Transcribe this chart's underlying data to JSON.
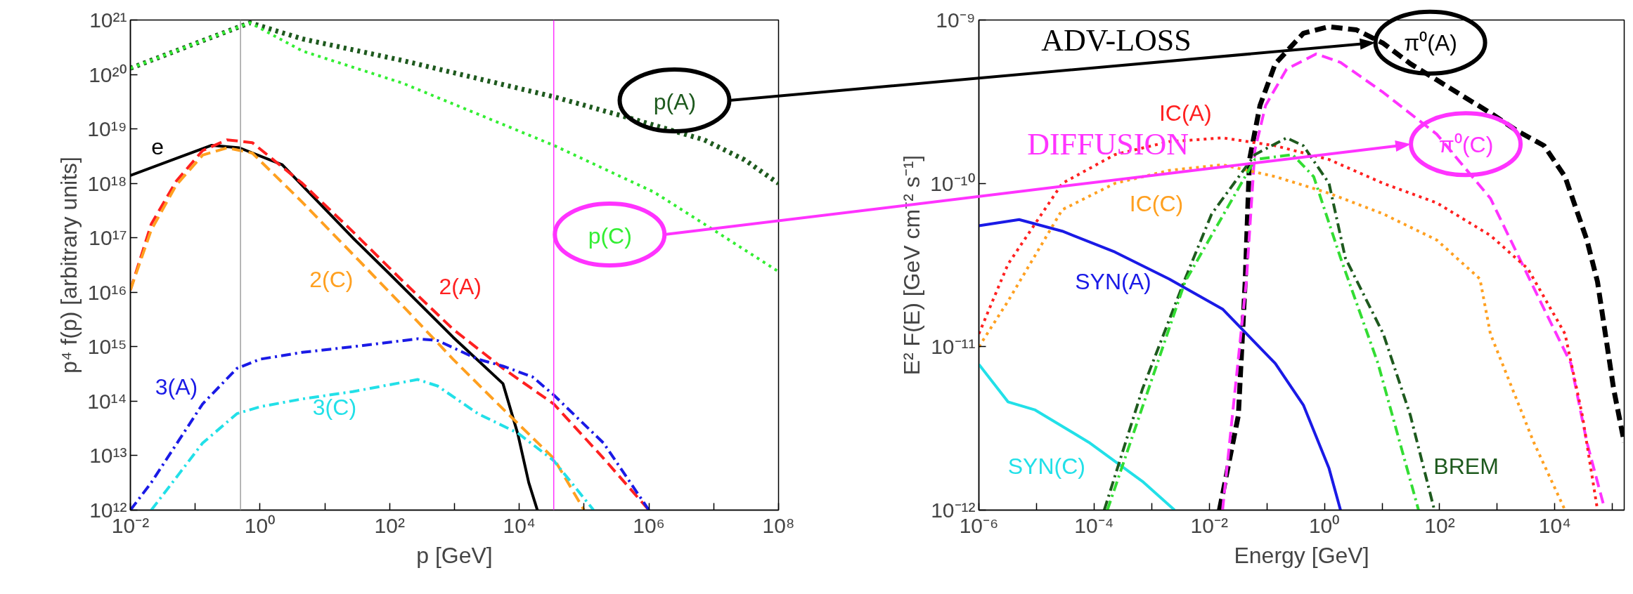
{
  "chart_data": [
    {
      "type": "line",
      "log": "xy",
      "xlabel": "p [GeV]",
      "ylabel": "p⁴ f(p) [arbitrary units]",
      "xlim": [
        0.01,
        100000000.0
      ],
      "ylim": [
        1000000000000.0,
        1e+21
      ],
      "xticks": [
        {
          "value": 0.01,
          "label": "10⁻²"
        },
        {
          "value": 0.1,
          "label": null
        },
        {
          "value": 1,
          "label": "10⁰"
        },
        {
          "value": 10,
          "label": null
        },
        {
          "value": 100,
          "label": "10²"
        },
        {
          "value": 1000,
          "label": null
        },
        {
          "value": 10000,
          "label": "10⁴"
        },
        {
          "value": 100000,
          "label": null
        },
        {
          "value": 1000000,
          "label": "10⁶"
        },
        {
          "value": 10000000,
          "label": null
        },
        {
          "value": 100000000,
          "label": "10⁸"
        }
      ],
      "yticks": [
        {
          "value": 1000000000000.0,
          "label": "10¹²"
        },
        {
          "value": 10000000000000.0,
          "label": "10¹³"
        },
        {
          "value": 100000000000000.0,
          "label": "10¹⁴"
        },
        {
          "value": 1000000000000000.0,
          "label": "10¹⁵"
        },
        {
          "value": 1e+16,
          "label": "10¹⁶"
        },
        {
          "value": 1e+17,
          "label": "10¹⁷"
        },
        {
          "value": 1e+18,
          "label": "10¹⁸"
        },
        {
          "value": 1e+19,
          "label": "10¹⁹"
        },
        {
          "value": 1e+20,
          "label": "10²⁰"
        },
        {
          "value": 1e+21,
          "label": "10²¹"
        }
      ],
      "ref_lines": [
        {
          "axis": "x",
          "value": 0.5,
          "color": "#a0a0a0"
        },
        {
          "axis": "x",
          "value": 34000,
          "color": "#ff33ff"
        }
      ],
      "series": [
        {
          "name": "p(A)",
          "color": "#1e5a1e",
          "line_style": "dotted",
          "x": [
            0.01,
            0.1,
            0.7,
            4.5,
            160,
            34000,
            490000,
            7100000,
            30000000,
            100000000
          ],
          "values": [
            1.3e+20,
            3.7e+20,
            8.9e+20,
            4.5e+20,
            1.8e+20,
            3.9e+19,
            1.6e+19,
            6.3e+18,
            2.7e+18,
            1e+18
          ]
        },
        {
          "name": "p(C)",
          "color": "#33ee33",
          "line_style": "dotted",
          "x": [
            0.01,
            0.1,
            0.7,
            4.5,
            160,
            34000,
            1200000,
            7100000,
            100000000
          ],
          "values": [
            1.3e+20,
            3.7e+20,
            8.9e+20,
            2.7e+20,
            6.9e+19,
            5e+18,
            6.9e+17,
            1.8e+17,
            2.4e+16
          ]
        },
        {
          "name": "e",
          "color": "#000000",
          "line_style": "solid",
          "x": [
            0.01,
            0.18,
            0.48,
            2.2,
            27,
            95,
            950,
            5600,
            9500,
            14000,
            19000
          ],
          "values": [
            1.4e+18,
            5e+18,
            4.5e+18,
            2.2e+18,
            1e+17,
            2.3e+16,
            1500000000000000.0,
            210000000000000.0,
            25000000000000.0,
            3200000000000.0,
            1000000000000.0
          ]
        },
        {
          "name": "2(A)",
          "color": "#ff2020",
          "line_style": "dashed",
          "x": [
            0.01,
            0.021,
            0.051,
            0.13,
            0.31,
            0.76,
            4.5,
            27,
            160,
            950,
            5600,
            34000,
            200000,
            1000000
          ],
          "values": [
            1.1e+16,
            1.8e+17,
            1.1e+18,
            4e+18,
            6.3e+18,
            5.6e+18,
            1e+18,
            1.3e+17,
            1.6e+16,
            2100000000000000.0,
            400000000000000.0,
            89000000000000.0,
            8900000000000.0,
            1000000000000.0
          ]
        },
        {
          "name": "2(C)",
          "color": "#ffa020",
          "line_style": "dashed",
          "x": [
            0.01,
            0.021,
            0.051,
            0.13,
            0.31,
            0.76,
            4.5,
            27,
            160,
            950,
            5600,
            34000,
            100000
          ],
          "values": [
            1.1e+16,
            1.4e+17,
            9.3e+17,
            3.3e+18,
            4.5e+18,
            3.6e+18,
            4.5e+17,
            5e+16,
            5600000000000000.0,
            590000000000000.0,
            72000000000000.0,
            8900000000000.0,
            1000000000000.0
          ]
        },
        {
          "name": "3(A)",
          "color": "#1a1ae6",
          "line_style": "dashdot",
          "x": [
            0.01,
            0.021,
            0.13,
            0.44,
            1,
            4.5,
            27,
            270,
            550,
            2300,
            5600,
            16000,
            34000,
            200000,
            1000000
          ],
          "values": [
            1000000000000.0,
            3200000000000.0,
            89000000000000.0,
            400000000000000.0,
            590000000000000.0,
            790000000000000.0,
            1000000000000000.0,
            1400000000000000.0,
            1300000000000000.0,
            590000000000000.0,
            440000000000000.0,
            280000000000000.0,
            130000000000000.0,
            17000000000000.0,
            1000000000000.0
          ]
        },
        {
          "name": "3(C)",
          "color": "#22e0e8",
          "line_style": "dashdot",
          "x": [
            0.021,
            0.13,
            0.44,
            1,
            4.5,
            27,
            270,
            550,
            2300,
            9500,
            34000,
            140000
          ],
          "values": [
            1000000000000.0,
            17000000000000.0,
            59000000000000.0,
            79000000000000.0,
            110000000000000.0,
            150000000000000.0,
            250000000000000.0,
            190000000000000.0,
            59000000000000.0,
            26000000000000.0,
            8100000000000.0,
            1000000000000.0
          ]
        }
      ]
    },
    {
      "type": "line",
      "log": "xy",
      "xlabel": "Energy [GeV]",
      "ylabel": "E² F(E) [GeV cm⁻² s⁻¹]",
      "xlim": [
        1e-06,
        160000
      ],
      "ylim": [
        1e-12,
        1e-09
      ],
      "xticks": [
        {
          "value": 1e-06,
          "label": "10⁻⁶"
        },
        {
          "value": 1e-05,
          "label": null
        },
        {
          "value": 0.0001,
          "label": "10⁻⁴"
        },
        {
          "value": 0.001,
          "label": null
        },
        {
          "value": 0.01,
          "label": "10⁻²"
        },
        {
          "value": 0.1,
          "label": null
        },
        {
          "value": 1,
          "label": "10⁰"
        },
        {
          "value": 10,
          "label": null
        },
        {
          "value": 100,
          "label": "10²"
        },
        {
          "value": 1000,
          "label": null
        },
        {
          "value": 10000,
          "label": "10⁴"
        },
        {
          "value": 100000,
          "label": null
        }
      ],
      "yticks": [
        {
          "value": 1e-12,
          "label": "10⁻¹²"
        },
        {
          "value": 1e-11,
          "label": "10⁻¹¹"
        },
        {
          "value": 1e-10,
          "label": "10⁻¹⁰"
        },
        {
          "value": 1e-09,
          "label": "10⁻⁹"
        }
      ],
      "annotations": [
        "ADV-LOSS",
        "DIFFUSION"
      ],
      "series": [
        {
          "name": "π⁰(A)",
          "color": "#000000",
          "line_style": "dashed",
          "x": [
            0.015,
            0.032,
            0.042,
            0.05,
            0.076,
            0.14,
            0.43,
            1.2,
            3.6,
            10.5,
            31,
            89,
            260,
            760,
            2200,
            6500,
            15000,
            36000,
            55000,
            105000,
            160000
          ],
          "values": [
            1e-12,
            3.8e-12,
            2.5e-11,
            1.4e-10,
            3e-10,
            5.4e-10,
            8.3e-10,
            9.1e-10,
            8.7e-10,
            7.2e-10,
            5.4e-10,
            4.3e-10,
            3.4e-10,
            2.7e-10,
            2.1e-10,
            1.7e-10,
            1.1e-10,
            4.5e-11,
            2.5e-11,
            5.5e-12,
            2.6e-12
          ]
        },
        {
          "name": "π⁰(C)",
          "color": "#ff33ff",
          "line_style": "dashed",
          "x": [
            0.017,
            0.044,
            0.062,
            0.095,
            0.22,
            0.72,
            1.9,
            10.5,
            89,
            760,
            6500,
            19000,
            36000,
            69000
          ],
          "values": [
            1e-12,
            2.5e-11,
            1.6e-10,
            3e-10,
            5e-10,
            6.2e-10,
            5.5e-10,
            3.6e-10,
            2e-10,
            8.1e-11,
            1.7e-11,
            7.9e-12,
            2.6e-12,
            1.1e-12
          ]
        },
        {
          "name": "IC(A)",
          "color": "#ff2020",
          "line_style": "dotted",
          "x": [
            1e-06,
            3.2e-06,
            2.8e-05,
            0.00023,
            0.002,
            0.017,
            0.14,
            1.2,
            10.5,
            89,
            760,
            3400,
            15000,
            30000,
            55000
          ],
          "values": [
            1.2e-11,
            3.2e-11,
            1e-10,
            1.5e-10,
            1.8e-10,
            1.9e-10,
            1.7e-10,
            1.4e-10,
            1e-10,
            7.6e-11,
            4.8e-11,
            3e-11,
            1.2e-11,
            3.8e-12,
            1e-12
          ]
        },
        {
          "name": "IC(C)",
          "color": "#ffa020",
          "line_style": "dotted",
          "x": [
            1e-06,
            3.2e-06,
            2.8e-05,
            0.00023,
            0.002,
            0.017,
            0.14,
            1.2,
            10.5,
            89,
            500,
            760,
            4300,
            15000
          ],
          "values": [
            1e-11,
            1.9e-11,
            6.9e-11,
            1e-10,
            1.2e-10,
            1.3e-10,
            1.1e-10,
            8.7e-11,
            6.5e-11,
            4.5e-11,
            2.6e-11,
            1.2e-11,
            2.6e-12,
            1e-12
          ]
        },
        {
          "name": "SYN(A)",
          "color": "#1a1ae6",
          "line_style": "solid",
          "x": [
            1e-06,
            5e-06,
            2.8e-05,
            0.00023,
            0.002,
            0.017,
            0.14,
            0.43,
            1.2,
            1.9
          ],
          "values": [
            5.5e-11,
            6e-11,
            5.1e-11,
            3.8e-11,
            2.6e-11,
            1.7e-11,
            7.9e-12,
            4.4e-12,
            1.8e-12,
            1e-12
          ]
        },
        {
          "name": "SYN(C)",
          "color": "#22e0e8",
          "line_style": "solid",
          "x": [
            1e-06,
            3.2e-06,
            9.5e-06,
            8.1e-05,
            0.00069,
            0.0025
          ],
          "values": [
            7.8e-12,
            4.6e-12,
            4.1e-12,
            2.6e-12,
            1.5e-12,
            1e-12
          ]
        },
        {
          "name": "BREM",
          "color": "#1e5a1e",
          "line_style": "dashdot",
          "x": [
            0.00015,
            0.00069,
            0.0038,
            0.011,
            0.062,
            0.22,
            0.43,
            1.2,
            2.3,
            10.5,
            31,
            81
          ],
          "values": [
            1e-12,
            5.5e-12,
            2.6e-11,
            6.5e-11,
            1.5e-10,
            1.9e-10,
            1.7e-10,
            1e-10,
            3.5e-11,
            1.2e-11,
            3.8e-12,
            1e-12
          ]
        },
        {
          "color": "#33dd33",
          "line_style": "dashdot",
          "x": [
            0.00017,
            0.0038,
            0.062,
            0.28,
            0.65,
            1.9,
            8.5,
            43
          ],
          "values": [
            1e-12,
            2.5e-11,
            1.4e-10,
            1.5e-10,
            1.1e-10,
            3.5e-11,
            7.9e-12,
            1e-12
          ]
        }
      ]
    }
  ]
}
